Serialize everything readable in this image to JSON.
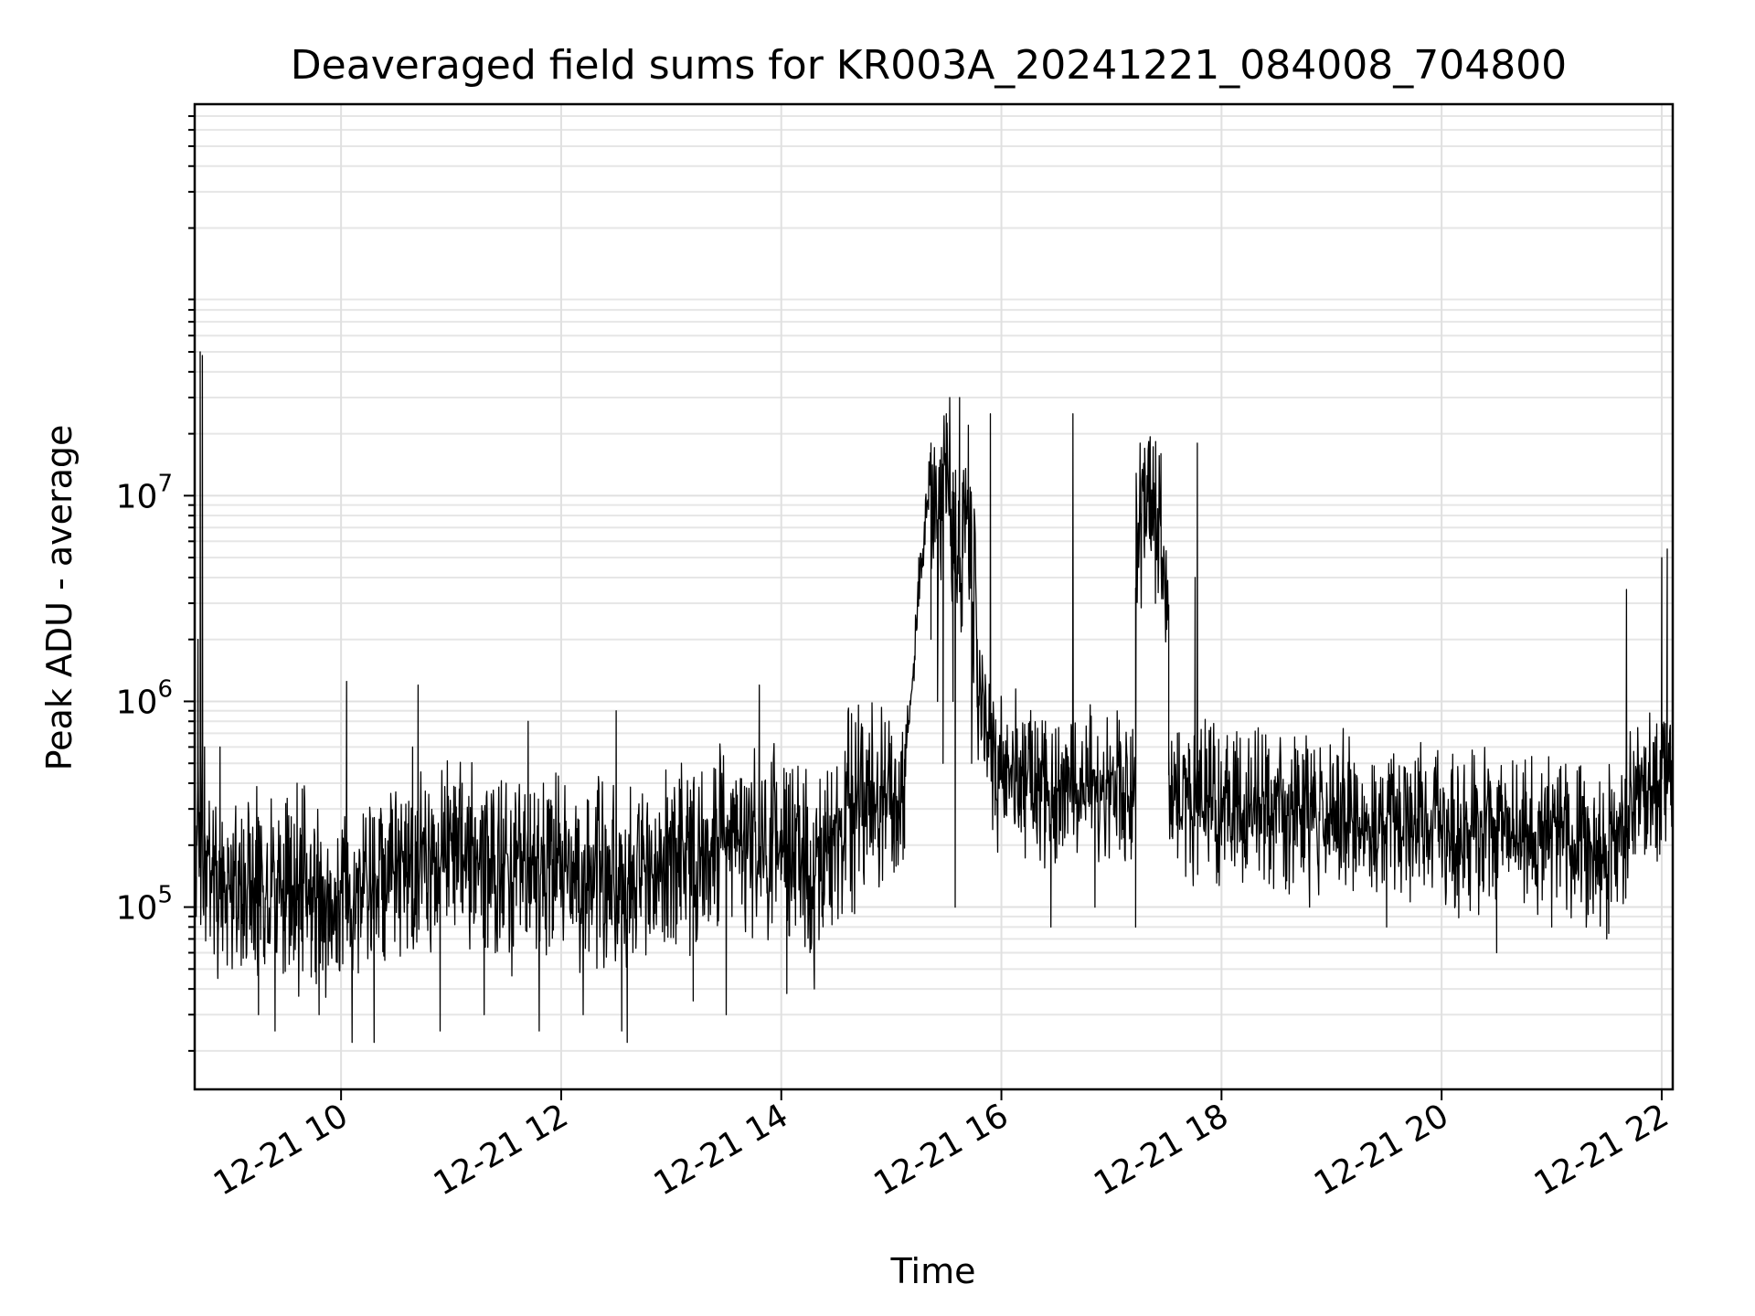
{
  "chart_data": {
    "type": "line",
    "title": "Deaveraged field sums for KR003A_20241221_084008_704800",
    "xlabel": "Time",
    "ylabel": "Peak ADU - average",
    "x_unit": "hour of 2024-12-21",
    "xlim": [
      8.67,
      22.1
    ],
    "ylim": [
      13000,
      800000000
    ],
    "yscale": "log",
    "grid": true,
    "x_ticks": [
      {
        "value": 10,
        "label": "12-21 10"
      },
      {
        "value": 12,
        "label": "12-21 12"
      },
      {
        "value": 14,
        "label": "12-21 14"
      },
      {
        "value": 16,
        "label": "12-21 16"
      },
      {
        "value": 18,
        "label": "12-21 18"
      },
      {
        "value": 20,
        "label": "12-21 20"
      },
      {
        "value": 22,
        "label": "12-21 22"
      }
    ],
    "y_ticks": [
      {
        "value": 100000,
        "base": "10",
        "exp": "5"
      },
      {
        "value": 1000000,
        "base": "10",
        "exp": "6"
      },
      {
        "value": 10000000,
        "base": "10",
        "exp": "7"
      }
    ],
    "series": [
      {
        "color": "#000000",
        "segments": [
          {
            "x_start": 8.67,
            "x_end": 15.12,
            "base_knots": [
              [
                8.67,
                200000
              ],
              [
                9.0,
                140000
              ],
              [
                9.5,
                120000
              ],
              [
                10.0,
                110000
              ],
              [
                10.5,
                150000
              ],
              [
                11.0,
                170000
              ],
              [
                11.5,
                150000
              ],
              [
                12.0,
                150000
              ],
              [
                12.5,
                140000
              ],
              [
                13.0,
                160000
              ],
              [
                13.5,
                220000
              ],
              [
                14.0,
                200000
              ],
              [
                14.3,
                140000
              ],
              [
                14.6,
                300000
              ],
              [
                15.12,
                320000
              ]
            ],
            "spread": 0.55
          },
          {
            "x_start": 15.12,
            "x_end": 15.36,
            "base_knots": [
              [
                15.12,
                500000
              ],
              [
                15.36,
                15000000
              ]
            ],
            "spread": 0.15
          },
          {
            "x_start": 15.36,
            "x_end": 15.78,
            "base_knots": [
              [
                15.36,
                5000000
              ],
              [
                15.5,
                10000000
              ],
              [
                15.6,
                5000000
              ],
              [
                15.7,
                10000000
              ],
              [
                15.78,
                2000000
              ]
            ],
            "spread": 0.6
          },
          {
            "x_start": 15.78,
            "x_end": 17.22,
            "base_knots": [
              [
                15.78,
                800000
              ],
              [
                16.0,
                450000
              ],
              [
                16.5,
                380000
              ],
              [
                17.0,
                400000
              ],
              [
                17.22,
                350000
              ]
            ],
            "spread": 0.45
          },
          {
            "x_start": 17.22,
            "x_end": 17.52,
            "base_knots": [
              [
                17.22,
                8000000
              ],
              [
                17.37,
                10000000
              ],
              [
                17.52,
                3000000
              ]
            ],
            "spread": 0.5
          },
          {
            "x_start": 17.52,
            "x_end": 22.1,
            "base_knots": [
              [
                17.52,
                350000
              ],
              [
                18.0,
                320000
              ],
              [
                19.0,
                280000
              ],
              [
                20.0,
                240000
              ],
              [
                21.0,
                220000
              ],
              [
                21.6,
                200000
              ],
              [
                21.7,
                300000
              ],
              [
                22.1,
                450000
              ]
            ],
            "spread": 0.45
          }
        ],
        "points": [
          [
            8.69,
            200000
          ],
          [
            8.7,
            2000000
          ],
          [
            8.72,
            50000000
          ],
          [
            8.74,
            48000000
          ],
          [
            8.76,
            600000
          ],
          [
            8.8,
            180000
          ],
          [
            8.88,
            45000
          ],
          [
            8.9,
            600000
          ],
          [
            9.0,
            200000
          ],
          [
            9.1,
            90000
          ],
          [
            9.25,
            30000
          ],
          [
            9.4,
            25000
          ],
          [
            9.5,
            90000
          ],
          [
            9.6,
            400000
          ],
          [
            9.8,
            30000
          ],
          [
            9.9,
            150000
          ],
          [
            10.05,
            1250000
          ],
          [
            10.1,
            22000
          ],
          [
            10.2,
            100000
          ],
          [
            10.3,
            22000
          ],
          [
            10.5,
            300000
          ],
          [
            10.65,
            600000
          ],
          [
            10.7,
            1200000
          ],
          [
            10.8,
            250000
          ],
          [
            10.9,
            25000
          ],
          [
            11.1,
            400000
          ],
          [
            11.3,
            30000
          ],
          [
            11.5,
            400000
          ],
          [
            11.7,
            800000
          ],
          [
            11.8,
            25000
          ],
          [
            11.9,
            300000
          ],
          [
            12.0,
            100000
          ],
          [
            12.2,
            30000
          ],
          [
            12.4,
            250000
          ],
          [
            12.5,
            900000
          ],
          [
            12.55,
            25000
          ],
          [
            12.6,
            22000
          ],
          [
            12.8,
            250000
          ],
          [
            13.0,
            100000
          ],
          [
            13.2,
            35000
          ],
          [
            13.4,
            150000
          ],
          [
            13.5,
            30000
          ],
          [
            13.6,
            350000
          ],
          [
            13.8,
            1200000
          ],
          [
            14.0,
            300000
          ],
          [
            14.05,
            38000
          ],
          [
            14.2,
            250000
          ],
          [
            14.3,
            40000
          ],
          [
            14.4,
            200000
          ],
          [
            14.6,
            500000
          ],
          [
            14.8,
            700000
          ],
          [
            15.0,
            300000
          ],
          [
            15.12,
            330000
          ],
          [
            15.25,
            5000000
          ],
          [
            15.36,
            18000000
          ],
          [
            15.42,
            1000000
          ],
          [
            15.47,
            500000
          ],
          [
            15.5,
            25000000
          ],
          [
            15.53,
            30000000
          ],
          [
            15.56,
            1000000
          ],
          [
            15.58,
            100000
          ],
          [
            15.62,
            30000000
          ],
          [
            15.65,
            5000000
          ],
          [
            15.7,
            22000000
          ],
          [
            15.73,
            500000
          ],
          [
            15.78,
            2000000
          ],
          [
            15.85,
            600000
          ],
          [
            15.9,
            25000000
          ],
          [
            15.95,
            400000
          ],
          [
            16.0,
            1000000
          ],
          [
            16.2,
            300000
          ],
          [
            16.4,
            800000
          ],
          [
            16.45,
            80000
          ],
          [
            16.6,
            400000
          ],
          [
            16.65,
            25000000
          ],
          [
            16.75,
            400000
          ],
          [
            16.85,
            100000
          ],
          [
            17.0,
            450000
          ],
          [
            17.15,
            350000
          ],
          [
            17.22,
            80000
          ],
          [
            17.26,
            18000000
          ],
          [
            17.3,
            5000000
          ],
          [
            17.35,
            18000000
          ],
          [
            17.4,
            3000000
          ],
          [
            17.45,
            16000000
          ],
          [
            17.52,
            600000
          ],
          [
            17.55,
            220000
          ],
          [
            17.6,
            700000
          ],
          [
            17.7,
            300000
          ],
          [
            17.76,
            4000000
          ],
          [
            17.78,
            18000000
          ],
          [
            17.8,
            300000
          ],
          [
            18.0,
            200000
          ],
          [
            18.5,
            400000
          ],
          [
            18.8,
            100000
          ],
          [
            19.0,
            300000
          ],
          [
            19.5,
            80000
          ],
          [
            20.0,
            250000
          ],
          [
            20.5,
            60000
          ],
          [
            20.8,
            250000
          ],
          [
            21.0,
            80000
          ],
          [
            21.3,
            150000
          ],
          [
            21.5,
            70000
          ],
          [
            21.6,
            200000
          ],
          [
            21.68,
            3500000
          ],
          [
            21.75,
            400000
          ],
          [
            21.9,
            200000
          ],
          [
            22.0,
            5000000
          ],
          [
            22.05,
            5500000
          ],
          [
            22.1,
            600000
          ]
        ]
      }
    ]
  }
}
